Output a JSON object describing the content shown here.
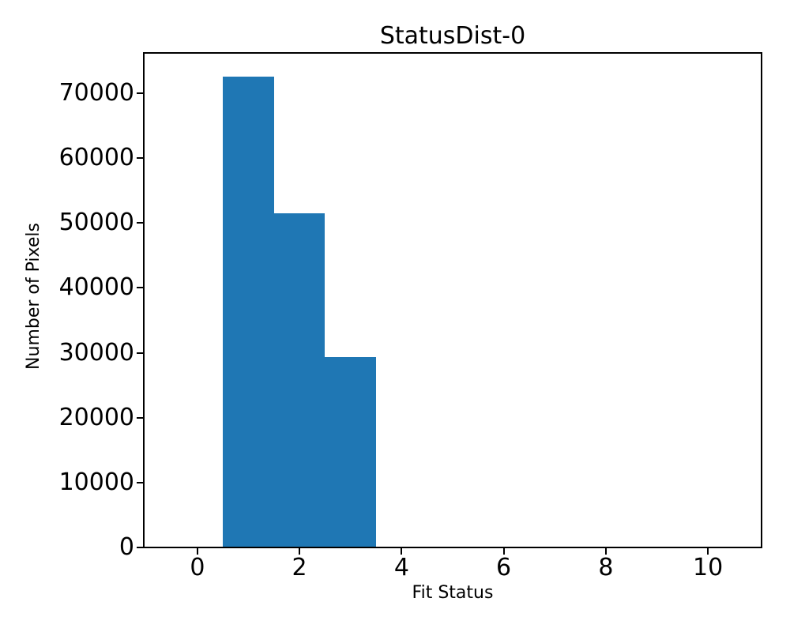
{
  "chart_data": {
    "type": "bar",
    "title": "StatusDist-0",
    "xlabel": "Fit Status",
    "ylabel": "Number of Pixels",
    "bins": {
      "edges": [
        0.5,
        1.5,
        2.5,
        3.5
      ],
      "centers": [
        1,
        2,
        3
      ]
    },
    "values": [
      72500,
      51500,
      29300
    ],
    "bar_color": "#1f77b4",
    "xlim": [
      -1.05,
      11.05
    ],
    "ylim": [
      0,
      76200
    ],
    "xticks": [
      0,
      2,
      4,
      6,
      8,
      10
    ],
    "yticks": [
      0,
      10000,
      20000,
      30000,
      40000,
      50000,
      60000,
      70000
    ],
    "grid": false,
    "legend": null,
    "background": "#ffffff",
    "text_color": "#000000"
  }
}
